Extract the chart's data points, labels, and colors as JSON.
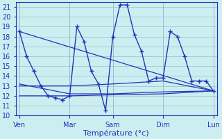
{
  "title": "Température (°c)",
  "background_color": "#cceef0",
  "grid_color": "#99bbcc",
  "line_color": "#2233bb",
  "xlim": [
    0,
    28
  ],
  "ylim": [
    10,
    21.5
  ],
  "yticks": [
    10,
    11,
    12,
    13,
    14,
    15,
    16,
    17,
    18,
    19,
    20,
    21
  ],
  "day_labels": [
    "Ven",
    "Mar",
    "Sam",
    "Dim",
    "Lun"
  ],
  "day_positions": [
    0.5,
    7.5,
    13.5,
    20.5,
    27.5
  ],
  "vline_positions": [
    0.5,
    7.5,
    13.5,
    20.5,
    27.5
  ],
  "series_main": {
    "x": [
      0.5,
      1.5,
      2.5,
      3.5,
      4.5,
      5.5,
      6.5,
      7.5,
      8.5,
      9.5,
      10.5,
      11.5,
      12.5,
      13.5,
      14.5,
      15.5,
      16.5,
      17.5,
      18.5,
      19.5,
      20.5,
      21.5,
      22.5,
      23.5,
      24.5,
      25.5,
      26.5,
      27.5
    ],
    "y": [
      18.5,
      16.0,
      14.5,
      13.0,
      12.0,
      11.8,
      11.6,
      12.0,
      19.0,
      17.5,
      14.5,
      13.2,
      10.5,
      18.0,
      21.2,
      21.2,
      18.2,
      16.5,
      13.5,
      13.8,
      13.8,
      18.5,
      18.0,
      16.0,
      13.5,
      13.5,
      13.5,
      12.5
    ]
  },
  "series_smooth": [
    {
      "x": [
        0.5,
        7.5,
        13.5,
        20.5,
        27.5
      ],
      "y": [
        13.0,
        13.0,
        13.2,
        13.5,
        12.5
      ]
    },
    {
      "x": [
        0.5,
        7.5,
        13.5,
        20.5,
        27.5
      ],
      "y": [
        13.2,
        12.2,
        12.2,
        12.4,
        12.5
      ]
    },
    {
      "x": [
        0.5,
        7.5,
        13.5,
        20.5,
        27.5
      ],
      "y": [
        12.0,
        12.0,
        12.1,
        12.2,
        12.5
      ]
    },
    {
      "x": [
        0.5,
        27.5
      ],
      "y": [
        18.5,
        12.5
      ]
    }
  ]
}
